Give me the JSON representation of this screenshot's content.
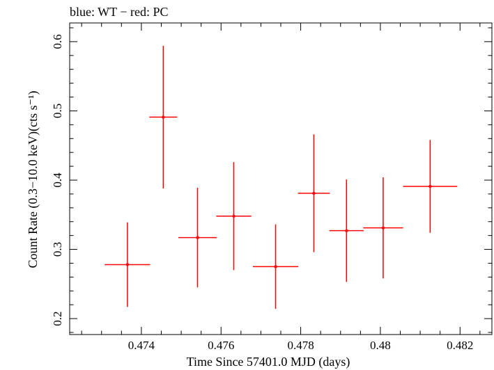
{
  "chart_data": {
    "type": "scatter",
    "title": "blue: WT − red: PC",
    "xlabel": "Time Since 57401.0 MJD (days)",
    "ylabel": "Count Rate (0.3−10.0 keV)(cts s⁻¹)",
    "xlim": [
      0.4722,
      0.4828
    ],
    "ylim": [
      0.177,
      0.627
    ],
    "xticks": [
      0.474,
      0.476,
      0.478,
      0.48,
      0.482
    ],
    "xtick_labels": [
      "0.474",
      "0.476",
      "0.478",
      "0.48",
      "0.482"
    ],
    "yticks": [
      0.2,
      0.3,
      0.4,
      0.5,
      0.6
    ],
    "ytick_labels": [
      "0.2",
      "0.3",
      "0.4",
      "0.5",
      "0.6"
    ],
    "grid": false,
    "series": [
      {
        "name": "PC",
        "color": "#ff0000",
        "points": [
          {
            "x": 0.47365,
            "y": 0.278,
            "xerr": 0.00057,
            "yerr_low": 0.061,
            "yerr_high": 0.061
          },
          {
            "x": 0.47455,
            "y": 0.491,
            "xerr": 0.00035,
            "yerr_low": 0.103,
            "yerr_high": 0.103
          },
          {
            "x": 0.47541,
            "y": 0.317,
            "xerr": 0.00048,
            "yerr_low": 0.072,
            "yerr_high": 0.072
          },
          {
            "x": 0.47632,
            "y": 0.348,
            "xerr": 0.00044,
            "yerr_low": 0.078,
            "yerr_high": 0.078
          },
          {
            "x": 0.47737,
            "y": 0.275,
            "xerr": 0.00057,
            "yerr_low": 0.061,
            "yerr_high": 0.061
          },
          {
            "x": 0.47833,
            "y": 0.381,
            "xerr": 0.0004,
            "yerr_low": 0.085,
            "yerr_high": 0.085
          },
          {
            "x": 0.47915,
            "y": 0.327,
            "xerr": 0.00043,
            "yerr_low": 0.074,
            "yerr_high": 0.074
          },
          {
            "x": 0.48007,
            "y": 0.331,
            "xerr": 0.0005,
            "yerr_low": 0.073,
            "yerr_high": 0.073
          },
          {
            "x": 0.48125,
            "y": 0.391,
            "xerr": 0.00068,
            "yerr_low": 0.067,
            "yerr_high": 0.067
          }
        ]
      }
    ]
  }
}
